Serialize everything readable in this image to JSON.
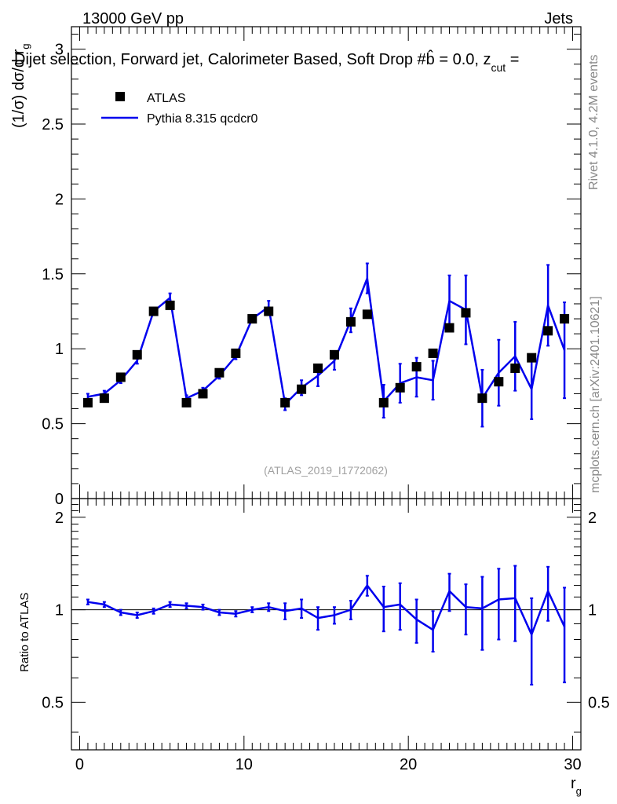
{
  "header": {
    "energy": "13000 GeV pp",
    "category": "Jets"
  },
  "plot_title": "Dijet selection, Forward jet, Calorimeter Based, Soft Drop #b̂ = 0.0, z",
  "plot_title_suffix": "cut",
  "plot_title_tail": " =",
  "side_text": {
    "rivet": "Rivet 4.1.0,  4.2M events",
    "mcplots": "mcplots.cern.ch [arXiv:2401.10621]"
  },
  "watermark": "(ATLAS_2019_I1772062)",
  "y_main": {
    "label": "(1/σ) dσ/d r",
    "sub": "g"
  },
  "y_ratio_label": "Ratio to ATLAS",
  "x_axis": {
    "label": "r",
    "sub": "g"
  },
  "legend": {
    "data_label": "ATLAS",
    "mc_label": "Pythia 8.315 qcdcr0"
  },
  "colors": {
    "data": "#000000",
    "mc": "#0000ee",
    "text": "#000000",
    "side": "#888888"
  },
  "chart_data": [
    {
      "type": "scatter",
      "name": "main",
      "xlim": [
        -0.5,
        30.5
      ],
      "ylim": [
        0,
        3.15
      ],
      "x_ticks": [
        0,
        10,
        20,
        30
      ],
      "y_ticks": [
        0,
        0.5,
        1,
        1.5,
        2,
        2.5,
        3
      ],
      "y_tick_labels": [
        "0",
        "0.5",
        "1",
        "1.5",
        "2",
        "2.5",
        "3"
      ],
      "x": [
        0.5,
        1.5,
        2.5,
        3.5,
        4.5,
        5.5,
        6.5,
        7.5,
        8.5,
        9.5,
        10.5,
        11.5,
        12.5,
        13.5,
        14.5,
        15.5,
        16.5,
        17.5,
        18.5,
        19.5,
        20.5,
        21.5,
        22.5,
        23.5,
        24.5,
        25.5,
        26.5,
        27.5,
        28.5,
        29.5
      ],
      "series": [
        {
          "name": "ATLAS",
          "style": "markers",
          "values": [
            0.64,
            0.67,
            0.81,
            0.96,
            1.25,
            1.29,
            0.64,
            0.7,
            0.84,
            0.97,
            1.2,
            1.25,
            0.64,
            0.73,
            0.87,
            0.96,
            1.18,
            1.23,
            0.64,
            0.74,
            0.88,
            0.97,
            1.14,
            1.24,
            0.67,
            0.78,
            0.87,
            0.94,
            1.12,
            1.2
          ]
        },
        {
          "name": "Pythia 8.315 qcdcr0",
          "style": "line",
          "values": [
            0.68,
            0.7,
            0.79,
            0.92,
            1.25,
            1.34,
            0.67,
            0.72,
            0.82,
            0.95,
            1.2,
            1.28,
            0.63,
            0.74,
            0.82,
            0.92,
            1.19,
            1.47,
            0.65,
            0.77,
            0.81,
            0.79,
            1.32,
            1.26,
            0.67,
            0.84,
            0.95,
            0.73,
            1.29,
            0.99
          ],
          "errors": [
            0.02,
            0.02,
            0.02,
            0.02,
            0.02,
            0.03,
            0.02,
            0.02,
            0.02,
            0.02,
            0.02,
            0.04,
            0.04,
            0.05,
            0.07,
            0.06,
            0.08,
            0.1,
            0.11,
            0.13,
            0.13,
            0.13,
            0.17,
            0.23,
            0.19,
            0.22,
            0.23,
            0.2,
            0.27,
            0.32
          ]
        }
      ]
    },
    {
      "type": "line",
      "name": "ratio",
      "xlim": [
        -0.5,
        30.5
      ],
      "ylim": [
        0.35,
        2.3
      ],
      "x_ticks": [
        0,
        10,
        20,
        30
      ],
      "x_tick_labels": [
        "0",
        "10",
        "20",
        "30"
      ],
      "y_ticks": [
        0.5,
        1,
        2
      ],
      "y_tick_labels": [
        "0.5",
        "1",
        "2"
      ],
      "reference": 1.0,
      "x": [
        0.5,
        1.5,
        2.5,
        3.5,
        4.5,
        5.5,
        6.5,
        7.5,
        8.5,
        9.5,
        10.5,
        11.5,
        12.5,
        13.5,
        14.5,
        15.5,
        16.5,
        17.5,
        18.5,
        19.5,
        20.5,
        21.5,
        22.5,
        23.5,
        24.5,
        25.5,
        26.5,
        27.5,
        28.5,
        29.5
      ],
      "series": [
        {
          "name": "Pythia 8.315 qcdcr0 / ATLAS",
          "values": [
            1.06,
            1.04,
            0.98,
            0.96,
            0.99,
            1.04,
            1.03,
            1.02,
            0.98,
            0.97,
            1.0,
            1.02,
            0.99,
            1.01,
            0.94,
            0.96,
            1.0,
            1.2,
            1.02,
            1.04,
            0.93,
            0.86,
            1.15,
            1.02,
            1.01,
            1.08,
            1.09,
            0.83,
            1.15,
            0.88
          ],
          "errors": [
            0.02,
            0.02,
            0.02,
            0.02,
            0.02,
            0.02,
            0.02,
            0.02,
            0.02,
            0.02,
            0.02,
            0.03,
            0.06,
            0.07,
            0.08,
            0.06,
            0.07,
            0.09,
            0.17,
            0.18,
            0.15,
            0.13,
            0.16,
            0.19,
            0.27,
            0.28,
            0.3,
            0.26,
            0.23,
            0.3
          ]
        }
      ]
    }
  ]
}
